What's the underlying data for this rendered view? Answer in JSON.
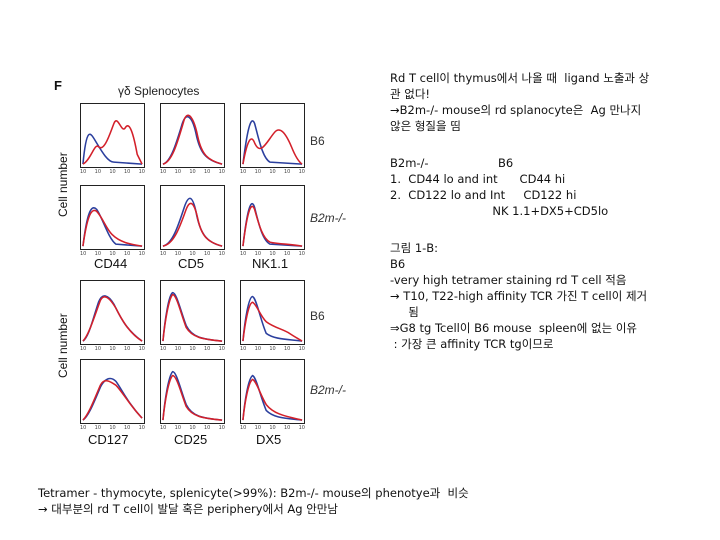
{
  "figure": {
    "panel_letter": "F",
    "title": "γδ Splenocytes",
    "y_axis_label": "Cell number",
    "top_block": {
      "row_labels": [
        "B6",
        "B2m-/-"
      ],
      "markers": [
        "CD44",
        "CD5",
        "NK1.1"
      ]
    },
    "bottom_block": {
      "row_labels": [
        "B6",
        "B2m-/-"
      ],
      "markers": [
        "CD127",
        "CD25",
        "DX5"
      ]
    },
    "tick_labels": [
      "10",
      "10",
      "10",
      "10",
      "10"
    ],
    "series_colors": {
      "blue": "#2b3f9e",
      "red": "#d3202a"
    }
  },
  "notes": {
    "block1": [
      "Rd T cell이 thymus에서 나올 때  ligand 노출과 상",
      "관 없다!",
      "→B2m-/- mouse의 rd splanocyte은  Ag 만나지",
      "않은 형질을 띰"
    ],
    "block2": [
      "B2m-/-                   B6",
      "1.  CD44 lo and int      CD44 hi",
      "2.  CD122 lo and Int     CD122 hi",
      "                            NK 1.1+DX5+CD5lo"
    ],
    "block3": [
      "그림 1-B:",
      "B6",
      "-very high tetramer staining rd T cell 적음",
      "→ T10, T22-high affinity TCR 가진 T cell이 제거",
      "     됨",
      "⇒G8 tg Tcell이 B6 mouse  spleen에 없는 이유",
      " : 가장 큰 affinity TCR tg이므로"
    ]
  },
  "caption": [
    "Tetramer - thymocyte, splenicyte(>99%): B2m-/- mouse의 phenotye과  비슷",
    "→ 대부분의 rd T cell이 발달 혹은 periphery에서 Ag 안만남"
  ]
}
